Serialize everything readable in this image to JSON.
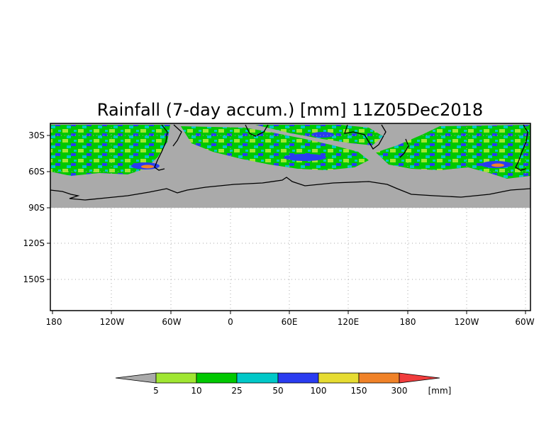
{
  "map": {
    "title": "Rainfall (7-day accum.) [mm] 11Z05Dec2018",
    "lat_labels": [
      "30S",
      "60S",
      "90S",
      "120S",
      "150S"
    ],
    "lon_labels": [
      "180",
      "120W",
      "60W",
      "0",
      "60E",
      "120E",
      "180",
      "120W",
      "60W"
    ],
    "extent": {
      "lon_start": 180,
      "lon_span_deg": 485,
      "lat_top": -19,
      "lat_bottom": -176
    },
    "data_lat_limit": -90,
    "colors": {
      "no_rain": "#aaaaaa",
      "bin_5_10": "#a0e632",
      "bin_10_25": "#00c800",
      "bin_25_50": "#00c8c8",
      "bin_50_100": "#2a3cf0",
      "bin_100_150": "#e6dc32",
      "bin_150_300": "#f08228",
      "bin_300_plus": "#f03c3c",
      "under_5": "#aaaaaa",
      "coastline": "#000000"
    }
  },
  "colorbar": {
    "labels": [
      "5",
      "10",
      "25",
      "50",
      "100",
      "150",
      "300"
    ],
    "unit": "[mm]",
    "colors": [
      "#aaaaaa",
      "#a0e632",
      "#00c800",
      "#00c8c8",
      "#2a3cf0",
      "#e6dc32",
      "#f08228",
      "#f03c3c"
    ]
  }
}
